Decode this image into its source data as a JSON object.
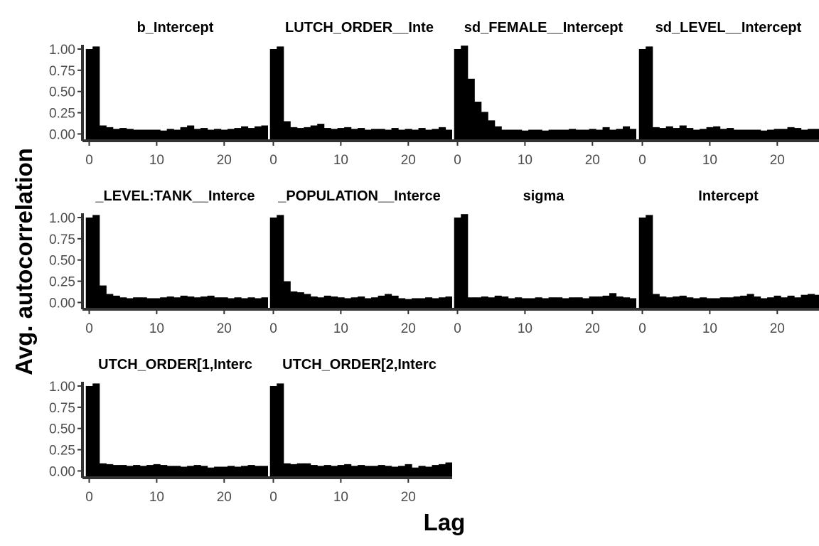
{
  "chart_data": {
    "type": "bar",
    "description_free": true,
    "xlabel": "Lag",
    "ylabel": "Avg. autocorrelation",
    "xlim": [
      -1,
      26.5
    ],
    "ylim": [
      -0.08,
      1.05
    ],
    "x_ticks": [
      0,
      10,
      20
    ],
    "x_tick_labels": [
      "0",
      "10",
      "20"
    ],
    "y_ticks": [
      0,
      0.25,
      0.5,
      0.75,
      1
    ],
    "y_tick_labels": [
      "0.00",
      "0.25",
      "0.50",
      "0.75",
      "1.00"
    ],
    "grid": false,
    "bar_color": "#000000",
    "axis_color": "#333333",
    "lags": [
      0,
      1,
      2,
      3,
      4,
      5,
      6,
      7,
      8,
      9,
      10,
      11,
      12,
      13,
      14,
      15,
      16,
      17,
      18,
      19,
      20,
      21,
      22,
      23,
      24,
      25,
      26
    ],
    "panels": [
      {
        "title": "b_Intercept",
        "show_y_axis": true,
        "values": [
          1.0,
          1.03,
          0.1,
          0.08,
          0.06,
          0.07,
          0.06,
          0.05,
          0.05,
          0.05,
          0.05,
          0.04,
          0.06,
          0.05,
          0.08,
          0.1,
          0.06,
          0.07,
          0.05,
          0.06,
          0.05,
          0.06,
          0.07,
          0.09,
          0.07,
          0.09,
          0.1
        ]
      },
      {
        "title": "LUTCH_ORDER__Inte",
        "show_y_axis": false,
        "values": [
          1.0,
          1.03,
          0.15,
          0.08,
          0.07,
          0.08,
          0.1,
          0.12,
          0.07,
          0.06,
          0.07,
          0.08,
          0.06,
          0.07,
          0.05,
          0.06,
          0.06,
          0.05,
          0.07,
          0.05,
          0.06,
          0.05,
          0.07,
          0.05,
          0.06,
          0.08,
          0.05
        ]
      },
      {
        "title": "sd_FEMALE__Intercept",
        "show_y_axis": false,
        "values": [
          1.0,
          1.04,
          0.65,
          0.38,
          0.26,
          0.16,
          0.09,
          0.05,
          0.05,
          0.05,
          0.04,
          0.05,
          0.05,
          0.04,
          0.05,
          0.05,
          0.05,
          0.06,
          0.05,
          0.05,
          0.06,
          0.05,
          0.08,
          0.05,
          0.06,
          0.09,
          0.06
        ]
      },
      {
        "title": "sd_LEVEL__Intercept",
        "show_y_axis": false,
        "values": [
          1.0,
          1.03,
          0.08,
          0.07,
          0.09,
          0.07,
          0.1,
          0.07,
          0.05,
          0.06,
          0.08,
          0.09,
          0.06,
          0.07,
          0.05,
          0.05,
          0.05,
          0.05,
          0.04,
          0.05,
          0.06,
          0.06,
          0.08,
          0.07,
          0.05,
          0.06,
          0.06
        ]
      },
      {
        "title": "_LEVEL:TANK__Interce",
        "show_y_axis": true,
        "values": [
          1.0,
          1.03,
          0.2,
          0.1,
          0.08,
          0.06,
          0.05,
          0.06,
          0.06,
          0.05,
          0.05,
          0.06,
          0.07,
          0.06,
          0.08,
          0.07,
          0.06,
          0.07,
          0.08,
          0.06,
          0.06,
          0.05,
          0.06,
          0.05,
          0.06,
          0.05,
          0.06
        ]
      },
      {
        "title": "_POPULATION__Interce",
        "show_y_axis": false,
        "values": [
          1.0,
          1.03,
          0.25,
          0.13,
          0.12,
          0.1,
          0.07,
          0.06,
          0.08,
          0.07,
          0.06,
          0.05,
          0.06,
          0.07,
          0.05,
          0.06,
          0.08,
          0.1,
          0.08,
          0.05,
          0.04,
          0.05,
          0.05,
          0.06,
          0.05,
          0.06,
          0.07
        ]
      },
      {
        "title": "sigma",
        "show_y_axis": false,
        "values": [
          1.0,
          1.04,
          0.06,
          0.06,
          0.07,
          0.06,
          0.08,
          0.07,
          0.05,
          0.06,
          0.05,
          0.05,
          0.06,
          0.05,
          0.06,
          0.06,
          0.05,
          0.06,
          0.06,
          0.05,
          0.07,
          0.07,
          0.08,
          0.11,
          0.07,
          0.06,
          0.05
        ]
      },
      {
        "title": "Intercept",
        "show_y_axis": false,
        "values": [
          1.0,
          1.03,
          0.1,
          0.07,
          0.06,
          0.07,
          0.08,
          0.06,
          0.05,
          0.06,
          0.05,
          0.05,
          0.06,
          0.06,
          0.07,
          0.08,
          0.1,
          0.07,
          0.05,
          0.06,
          0.08,
          0.06,
          0.08,
          0.06,
          0.09,
          0.1,
          0.09
        ]
      },
      {
        "title": "UTCH_ORDER[1,Interc",
        "show_y_axis": true,
        "values": [
          1.0,
          1.03,
          0.09,
          0.08,
          0.07,
          0.07,
          0.06,
          0.07,
          0.06,
          0.07,
          0.08,
          0.07,
          0.06,
          0.06,
          0.05,
          0.06,
          0.07,
          0.06,
          0.04,
          0.05,
          0.05,
          0.06,
          0.05,
          0.06,
          0.07,
          0.06,
          0.06
        ]
      },
      {
        "title": "UTCH_ORDER[2,Interc",
        "show_y_axis": false,
        "values": [
          1.0,
          1.03,
          0.09,
          0.08,
          0.09,
          0.09,
          0.07,
          0.06,
          0.07,
          0.06,
          0.07,
          0.08,
          0.06,
          0.07,
          0.06,
          0.06,
          0.07,
          0.06,
          0.05,
          0.06,
          0.08,
          0.04,
          0.06,
          0.05,
          0.07,
          0.08,
          0.1
        ]
      }
    ]
  }
}
